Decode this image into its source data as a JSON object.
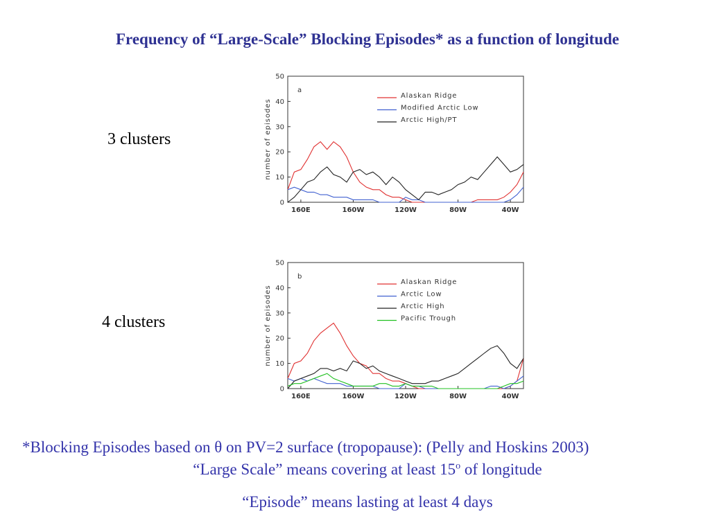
{
  "title": "Frequency of “Large-Scale” Blocking Episodes* as a function of longitude",
  "labels": [
    "3 clusters",
    "4 clusters"
  ],
  "notes": [
    "*Blocking Episodes based on θ on PV=2 surface (tropopause): (Pelly and Hoskins 2003)",
    {
      "before": "“Large Scale” means covering at least 15",
      "sup": "o",
      "after": " of longitude"
    },
    "“Episode” means lasting at least 4 days"
  ],
  "chart_data": [
    {
      "type": "line",
      "panel_label": "a",
      "y_label": "number of episodes",
      "x": [
        150,
        155,
        160,
        165,
        170,
        175,
        180,
        185,
        190,
        195,
        200,
        205,
        210,
        215,
        220,
        225,
        230,
        235,
        240,
        245,
        250,
        255,
        260,
        265,
        270,
        275,
        280,
        285,
        290,
        295,
        300,
        305,
        310,
        315,
        320,
        325,
        330
      ],
      "xlim": [
        150,
        330
      ],
      "xticks": [
        {
          "value": 160,
          "label": "160E"
        },
        {
          "value": 200,
          "label": "160W"
        },
        {
          "value": 240,
          "label": "120W"
        },
        {
          "value": 280,
          "label": "80W"
        },
        {
          "value": 320,
          "label": "40W"
        }
      ],
      "ylim": [
        0,
        50
      ],
      "yticks": [
        0,
        10,
        20,
        30,
        40,
        50
      ],
      "legend": "top-right",
      "series": [
        {
          "name": "Alaskan Ridge",
          "color": "#e03030",
          "values": [
            5,
            12,
            13,
            17,
            22,
            24,
            21,
            24,
            22,
            18,
            12,
            8,
            6,
            5,
            5,
            3,
            2,
            2,
            1,
            0,
            0,
            0,
            0,
            0,
            0,
            0,
            0,
            0,
            0,
            1,
            1,
            1,
            1,
            2,
            4,
            7,
            12
          ]
        },
        {
          "name": "Modified Arctic Low",
          "color": "#4060d0",
          "values": [
            5,
            6,
            5,
            4,
            4,
            3,
            3,
            2,
            2,
            2,
            1,
            1,
            1,
            1,
            0,
            0,
            0,
            0,
            2,
            1,
            1,
            0,
            0,
            0,
            0,
            0,
            0,
            0,
            0,
            0,
            0,
            0,
            0,
            0,
            1,
            3,
            6
          ]
        },
        {
          "name": "Arctic High/PT",
          "color": "#222222",
          "values": [
            0,
            2,
            5,
            8,
            9,
            12,
            14,
            11,
            10,
            8,
            12,
            13,
            11,
            12,
            10,
            7,
            10,
            8,
            5,
            3,
            1,
            4,
            4,
            3,
            4,
            5,
            7,
            8,
            10,
            9,
            12,
            15,
            18,
            15,
            12,
            13,
            15
          ]
        }
      ]
    },
    {
      "type": "line",
      "panel_label": "b",
      "y_label": "number of episodes",
      "x": [
        150,
        155,
        160,
        165,
        170,
        175,
        180,
        185,
        190,
        195,
        200,
        205,
        210,
        215,
        220,
        225,
        230,
        235,
        240,
        245,
        250,
        255,
        260,
        265,
        270,
        275,
        280,
        285,
        290,
        295,
        300,
        305,
        310,
        315,
        320,
        325,
        330
      ],
      "xlim": [
        150,
        330
      ],
      "xticks": [
        {
          "value": 160,
          "label": "160E"
        },
        {
          "value": 200,
          "label": "160W"
        },
        {
          "value": 240,
          "label": "120W"
        },
        {
          "value": 280,
          "label": "80W"
        },
        {
          "value": 320,
          "label": "40W"
        }
      ],
      "ylim": [
        0,
        50
      ],
      "yticks": [
        0,
        10,
        20,
        30,
        40,
        50
      ],
      "legend": "top-right",
      "series": [
        {
          "name": "Alaskan Ridge",
          "color": "#e03030",
          "values": [
            4,
            10,
            11,
            14,
            19,
            22,
            24,
            26,
            22,
            17,
            13,
            10,
            9,
            6,
            6,
            4,
            3,
            3,
            2,
            1,
            0,
            0,
            0,
            0,
            0,
            0,
            0,
            0,
            0,
            0,
            0,
            0,
            0,
            0,
            1,
            3,
            12
          ]
        },
        {
          "name": "Arctic Low",
          "color": "#4060d0",
          "values": [
            4,
            3,
            4,
            3,
            4,
            3,
            2,
            2,
            2,
            1,
            1,
            1,
            1,
            1,
            0,
            0,
            0,
            0,
            2,
            1,
            1,
            0,
            0,
            0,
            0,
            0,
            0,
            0,
            0,
            0,
            0,
            1,
            1,
            0,
            1,
            3,
            5
          ]
        },
        {
          "name": "Arctic High",
          "color": "#222222",
          "values": [
            0,
            3,
            4,
            5,
            6,
            8,
            8,
            7,
            8,
            7,
            11,
            10,
            8,
            9,
            7,
            6,
            5,
            4,
            3,
            2,
            2,
            2,
            3,
            3,
            4,
            5,
            6,
            8,
            10,
            12,
            14,
            16,
            17,
            14,
            10,
            8,
            12
          ]
        },
        {
          "name": "Pacific Trough",
          "color": "#20c020",
          "values": [
            1,
            2,
            2,
            3,
            4,
            5,
            6,
            4,
            3,
            2,
            1,
            1,
            1,
            1,
            2,
            2,
            1,
            1,
            2,
            1,
            1,
            1,
            1,
            0,
            0,
            0,
            0,
            0,
            0,
            0,
            0,
            0,
            0,
            1,
            2,
            2,
            3
          ]
        }
      ]
    }
  ]
}
